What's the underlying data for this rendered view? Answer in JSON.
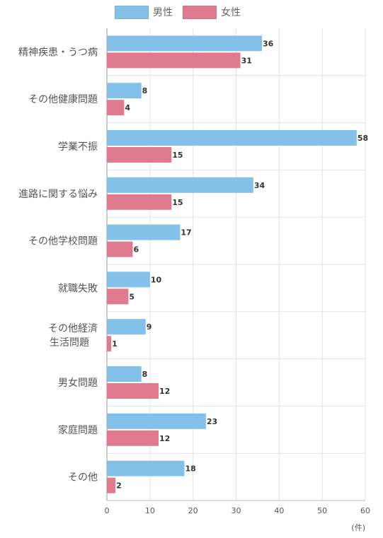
{
  "chart_data": {
    "type": "bar",
    "orientation": "horizontal",
    "categories": [
      "精神疾患・うつ病",
      "その他健康問題",
      "学業不振",
      "進路に関する悩み",
      "その他学校問題",
      "就職失敗",
      "その他経済\n生活問題",
      "男女問題",
      "家庭問題",
      "その他"
    ],
    "series": [
      {
        "name": "男性",
        "color": "#84c1e8",
        "values": [
          36,
          8,
          58,
          34,
          17,
          10,
          9,
          8,
          23,
          18
        ]
      },
      {
        "name": "女性",
        "color": "#e07a8f",
        "values": [
          31,
          4,
          15,
          15,
          6,
          5,
          1,
          12,
          12,
          2
        ]
      }
    ],
    "xlim": [
      0,
      60
    ],
    "xticks": [
      0,
      10,
      20,
      30,
      40,
      50,
      60
    ],
    "xunit": "(件)",
    "grid": true,
    "legend": "top-center"
  }
}
